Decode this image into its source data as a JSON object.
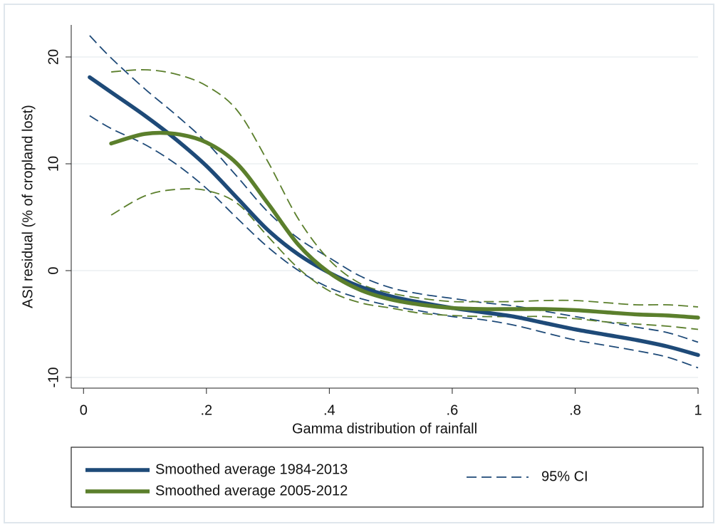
{
  "chart_data": {
    "type": "line",
    "xlabel": "Gamma distribution of rainfall",
    "ylabel": "ASI residual (% of cropland lost)",
    "x": [
      0.01,
      0.045,
      0.1,
      0.15,
      0.2,
      0.25,
      0.3,
      0.35,
      0.4,
      0.45,
      0.5,
      0.55,
      0.6,
      0.65,
      0.7,
      0.75,
      0.8,
      0.85,
      0.9,
      0.95,
      1.0
    ],
    "series": [
      {
        "name": "Smoothed average 1984-2013",
        "color": "#1e4a78",
        "values": [
          18.1,
          16.7,
          14.5,
          12.3,
          9.8,
          6.8,
          3.8,
          1.5,
          -0.2,
          -1.5,
          -2.4,
          -3.0,
          -3.5,
          -3.9,
          -4.3,
          -4.9,
          -5.5,
          -6.0,
          -6.5,
          -7.1,
          -7.9
        ],
        "ci_upper": [
          22,
          19.9,
          17,
          14.6,
          12,
          8.8,
          5.5,
          3,
          1.2,
          -0.5,
          -1.6,
          -2.2,
          -2.6,
          -3.0,
          -3.3,
          -3.8,
          -4.3,
          -4.8,
          -5.3,
          -5.8,
          -6.7
        ],
        "ci_lower": [
          14.5,
          13.3,
          11.8,
          10,
          7.7,
          4.9,
          2.2,
          0,
          -1.6,
          -2.6,
          -3.3,
          -3.8,
          -4.3,
          -4.6,
          -5.1,
          -5.8,
          -6.5,
          -7.0,
          -7.5,
          -8.1,
          -9.1
        ]
      },
      {
        "name": "Smoothed average 2005-2012",
        "color": "#5b7f2c",
        "values": [
          null,
          11.9,
          12.8,
          12.8,
          12.0,
          10.0,
          6.3,
          2.4,
          -0.2,
          -1.8,
          -2.7,
          -3.2,
          -3.5,
          -3.6,
          -3.6,
          -3.6,
          -3.7,
          -3.9,
          -4.1,
          -4.2,
          -4.4
        ],
        "ci_upper": [
          null,
          18.6,
          18.8,
          18.4,
          17.3,
          15,
          10.2,
          4.8,
          1.0,
          -1.2,
          -2.1,
          -2.6,
          -2.9,
          -2.9,
          -2.9,
          -2.8,
          -2.8,
          -3.0,
          -3.2,
          -3.2,
          -3.4
        ],
        "ci_lower": [
          null,
          5.2,
          7.0,
          7.6,
          7.5,
          6.3,
          3.2,
          0.2,
          -1.9,
          -3.0,
          -3.5,
          -4.0,
          -4.2,
          -4.3,
          -4.3,
          -4.3,
          -4.5,
          -4.8,
          -5.0,
          -5.2,
          -5.5
        ]
      }
    ],
    "ci_label": "95% CI",
    "ci_color": "#1e4a78",
    "xlim": [
      -0.02,
      1.0
    ],
    "ylim": [
      -11,
      23
    ],
    "xticks": [
      0,
      {
        "value": 0.2,
        "label": ".2"
      },
      {
        "value": 0.4,
        "label": ".4"
      },
      {
        "value": 0.6,
        "label": ".6"
      },
      {
        "value": 0.8,
        "label": ".8"
      },
      1
    ],
    "yticks": [
      -10,
      0,
      10,
      20
    ],
    "grid": true,
    "legend": "bottom"
  }
}
